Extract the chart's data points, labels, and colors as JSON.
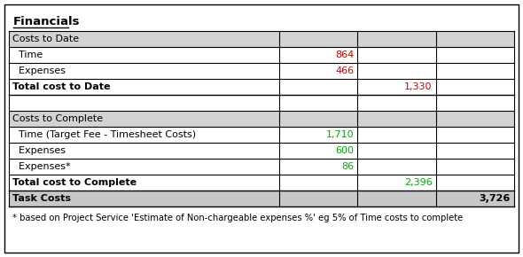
{
  "title": "Financials",
  "footnote": "* based on Project Service 'Estimate of Non-chargeable expenses %' eg 5% of Time costs to complete",
  "rows": [
    {
      "label": "Costs to Date",
      "col1": "",
      "col2": "",
      "col3": "",
      "style": "header",
      "indent": false
    },
    {
      "label": "  Time",
      "col1": "864",
      "col2": "",
      "col3": "",
      "style": "normal",
      "indent": false,
      "col1_color": "#CC0000"
    },
    {
      "label": "  Expenses",
      "col1": "466",
      "col2": "",
      "col3": "",
      "style": "normal",
      "indent": false,
      "col1_color": "#CC0000"
    },
    {
      "label": "Total cost to Date",
      "col1": "",
      "col2": "1,330",
      "col3": "",
      "style": "bold",
      "indent": false,
      "col2_color": "#CC0000"
    },
    {
      "label": "",
      "col1": "",
      "col2": "",
      "col3": "",
      "style": "spacer",
      "indent": false
    },
    {
      "label": "Costs to Complete",
      "col1": "",
      "col2": "",
      "col3": "",
      "style": "header",
      "indent": false
    },
    {
      "label": "  Time (Target Fee - Timesheet Costs)",
      "col1": "1,710",
      "col2": "",
      "col3": "",
      "style": "normal",
      "indent": false,
      "col1_color": "#00AA00"
    },
    {
      "label": "  Expenses",
      "col1": "600",
      "col2": "",
      "col3": "",
      "style": "normal",
      "indent": false,
      "col1_color": "#00AA00"
    },
    {
      "label": "  Expenses*",
      "col1": "86",
      "col2": "",
      "col3": "",
      "style": "normal",
      "indent": false,
      "col1_color": "#00AA00"
    },
    {
      "label": "Total cost to Complete",
      "col1": "",
      "col2": "2,396",
      "col3": "",
      "style": "bold",
      "indent": false,
      "col2_color": "#00AA00"
    },
    {
      "label": "Task Costs",
      "col1": "",
      "col2": "",
      "col3": "3,726",
      "style": "task",
      "indent": false,
      "col3_color": "#000000"
    }
  ],
  "header_bg": "#D3D3D3",
  "spacer_bg": "#FFFFFF",
  "normal_bg": "#FFFFFF",
  "bold_bg": "#FFFFFF",
  "task_bg": "#C8C8C8",
  "border_color": "#000000",
  "title_color": "#000000",
  "footnote_color": "#000000",
  "fig_width": 5.9,
  "fig_height": 2.9,
  "dpi": 100
}
